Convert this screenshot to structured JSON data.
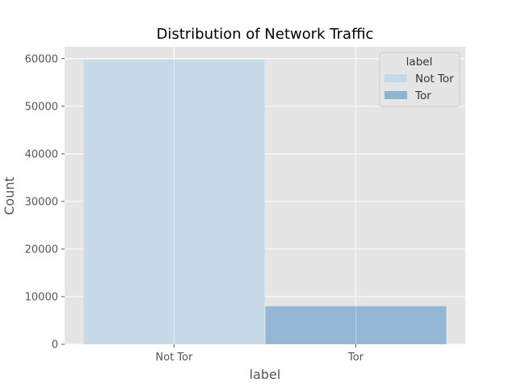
{
  "chart_data": {
    "type": "bar",
    "title": "Distribution of Network Traffic",
    "xlabel": "label",
    "ylabel": "Count",
    "categories": [
      "Not Tor",
      "Tor"
    ],
    "values": [
      59800,
      8000
    ],
    "ylim": [
      0,
      62500
    ],
    "yticks": [
      0,
      10000,
      20000,
      30000,
      40000,
      50000,
      60000
    ],
    "grid": true,
    "legend": {
      "title": "label",
      "placement": "top-right",
      "entries": [
        "Not Tor",
        "Tor"
      ]
    },
    "colors": {
      "plot_background": "#e5e5e5",
      "grid": "#ffffff",
      "series": [
        "#c5d9e8",
        "#8eb4d4"
      ]
    }
  }
}
